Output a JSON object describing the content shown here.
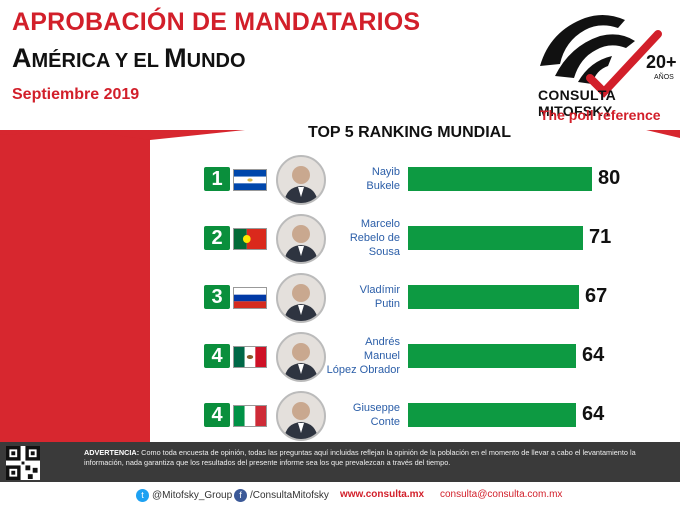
{
  "header": {
    "title_line1": "APROBACIÓN DE MANDATARIOS",
    "title_line2_parts": [
      "A",
      "MÉRICA Y EL ",
      "M",
      "UNDO"
    ],
    "subtitle": "Septiembre 2019"
  },
  "logo": {
    "name": "CONSULTA MITOFSKY",
    "tagline": "The poll reference",
    "years": "20+",
    "years_label": "AÑOS",
    "icon": "seal-logo-icon"
  },
  "chart_data": {
    "type": "bar",
    "title": "TOP 5 RANKING MUNDIAL",
    "categories": [
      "Nayib Bukele",
      "Marcelo Rebelo de Sousa",
      "Vladímir Putin",
      "Andrés Manuel López Obrador",
      "Giuseppe Conte"
    ],
    "ranks": [
      "1",
      "2",
      "3",
      "4",
      "4"
    ],
    "name_lines": [
      [
        "Nayib",
        "Bukele"
      ],
      [
        "Marcelo",
        "Rebelo de",
        "Sousa"
      ],
      [
        "Vladímir",
        "Putin"
      ],
      [
        "Andrés",
        "Manuel",
        "López Obrador"
      ],
      [
        "Giuseppe",
        "Conte"
      ]
    ],
    "flags": [
      "el-salvador-flag-icon",
      "portugal-flag-icon",
      "russia-flag-icon",
      "mexico-flag-icon",
      "italy-flag-icon"
    ],
    "values": [
      80,
      71,
      67,
      64,
      64
    ],
    "value_labels": [
      "80",
      "71",
      "67",
      "64",
      "64"
    ],
    "xlim": [
      0,
      100
    ],
    "bar_color": "#0d9a42",
    "orientation": "horizontal"
  },
  "disclaimer": {
    "label": "ADVERTENCIA:",
    "text": "Como toda encuesta de opinión, todas las preguntas aquí incluidas reflejan la opinión de la población en el momento de llevar a cabo el levantamiento la información, nada garantiza que los resultados del presente informe sea los que prevalezcan a través del tiempo."
  },
  "footer": {
    "twitter": "@Mitofsky_Group",
    "facebook": "/ConsultaMitofsky",
    "website": "www.consulta.mx",
    "email": "consulta@consulta.com.mx"
  },
  "colors": {
    "red": "#d21f2a",
    "green": "#0d9a42",
    "dark": "#3a3a3a"
  }
}
